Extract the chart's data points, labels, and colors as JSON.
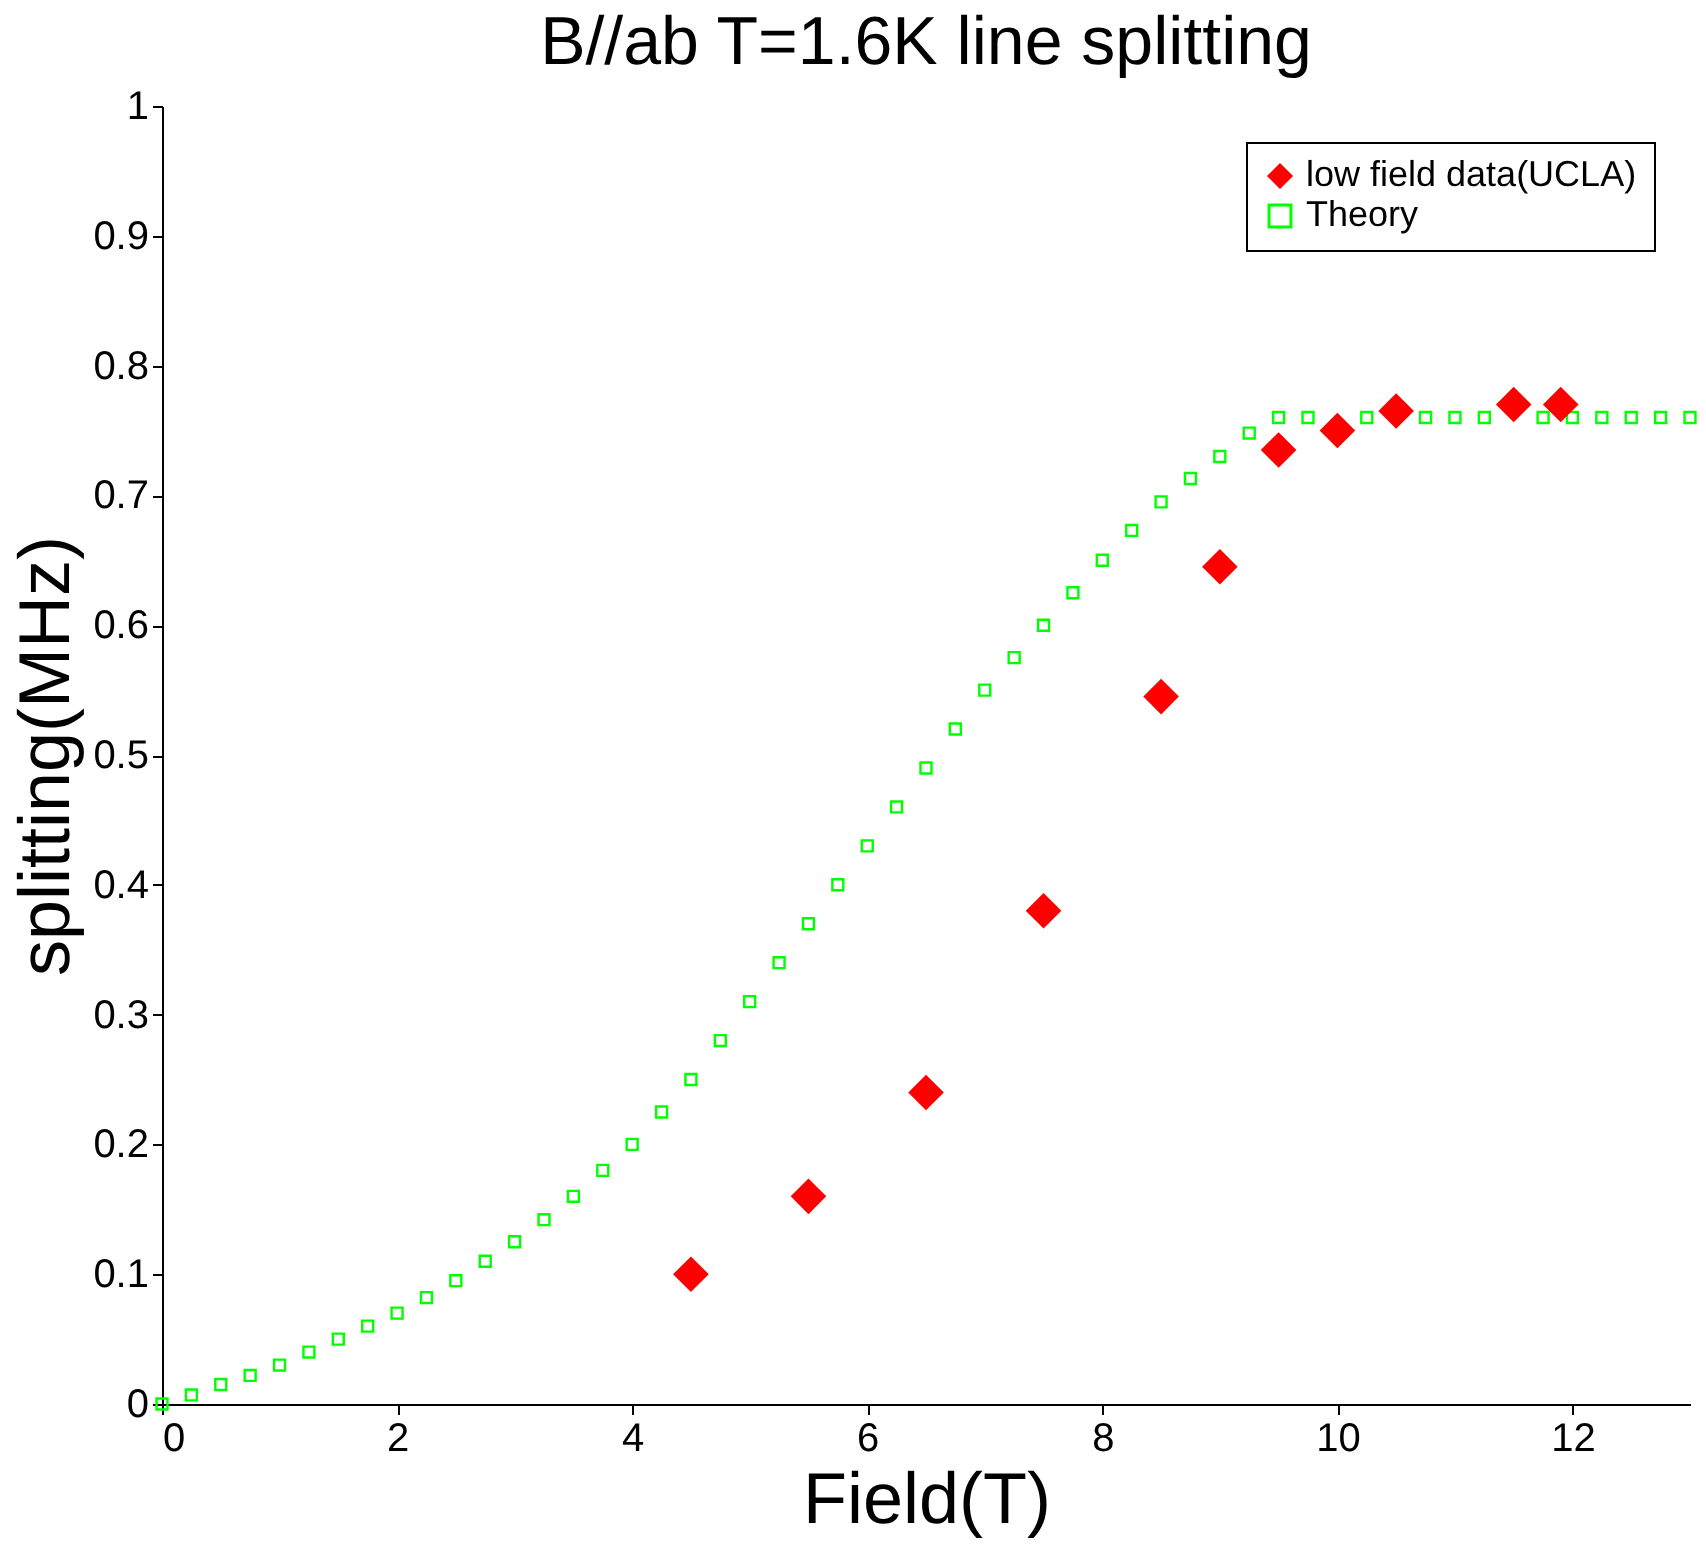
{
  "chart_data": {
    "type": "scatter",
    "title": "B//ab T=1.6K line splitting",
    "xlabel": "Field(T)",
    "ylabel": "splitting(MHz)",
    "xlim": [
      0,
      13
    ],
    "ylim": [
      0,
      1
    ],
    "xticks": [
      0,
      2,
      4,
      6,
      8,
      10,
      12
    ],
    "yticks": [
      0,
      0.1,
      0.2,
      0.3,
      0.4,
      0.5,
      0.6,
      0.7,
      0.8,
      0.9,
      1
    ],
    "grid": false,
    "legend": "top right",
    "series": [
      {
        "name": "low field data(UCLA)",
        "color": "#ff0000",
        "marker": "diamond",
        "x": [
          4.5,
          5.5,
          6.5,
          7.5,
          8.5,
          9,
          9.5,
          10,
          10.5,
          11.5,
          11.9
        ],
        "values": [
          0.1,
          0.16,
          0.24,
          0.38,
          0.545,
          0.645,
          0.735,
          0.75,
          0.765,
          0.77,
          0.77
        ]
      },
      {
        "name": "Theory",
        "color": "#00ff00",
        "marker": "square",
        "x": [
          0,
          0.25,
          0.5,
          0.75,
          1,
          1.25,
          1.5,
          1.75,
          2,
          2.25,
          2.5,
          2.75,
          3,
          3.25,
          3.5,
          3.75,
          4,
          4.25,
          4.5,
          4.75,
          5,
          5.25,
          5.5,
          5.75,
          6,
          6.25,
          6.5,
          6.75,
          7,
          7.25,
          7.5,
          7.75,
          8,
          8.25,
          8.5,
          8.75,
          9,
          9.25,
          9.5,
          9.75,
          10,
          10.25,
          10.5,
          10.75,
          11,
          11.25,
          11.5,
          11.75,
          12,
          12.25,
          12.5,
          12.75,
          13
        ],
        "values": [
          0.0,
          0.007,
          0.015,
          0.022,
          0.03,
          0.04,
          0.05,
          0.06,
          0.07,
          0.082,
          0.095,
          0.11,
          0.125,
          0.142,
          0.16,
          0.18,
          0.2,
          0.225,
          0.25,
          0.28,
          0.31,
          0.34,
          0.37,
          0.4,
          0.43,
          0.46,
          0.49,
          0.52,
          0.55,
          0.575,
          0.6,
          0.625,
          0.65,
          0.673,
          0.695,
          0.713,
          0.73,
          0.748,
          0.76,
          0.76,
          null,
          0.76,
          null,
          0.76,
          0.76,
          0.76,
          null,
          0.76,
          0.76,
          0.76,
          0.76,
          0.76,
          0.76
        ]
      }
    ]
  }
}
